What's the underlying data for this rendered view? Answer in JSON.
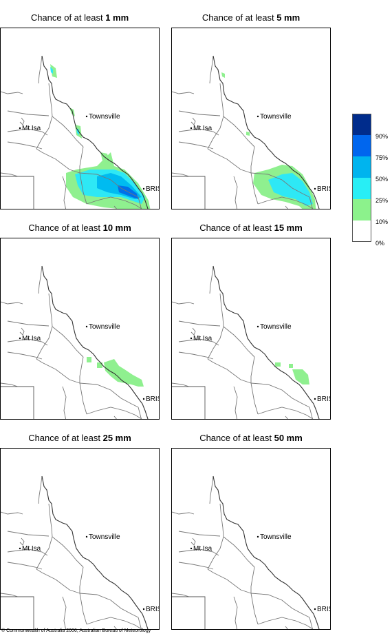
{
  "panels": [
    {
      "prefix": "Chance of at least ",
      "amount": "1 mm",
      "fill": [
        {
          "c": "#8ff08f",
          "p": "95,210 110,205 140,200 160,180 165,200 180,205 200,225 215,250 220,275 210,300 195,290 185,270 170,262 150,260 125,255 105,245 95,230"
        },
        {
          "c": "#2ee8f5",
          "p": "108,212 130,205 150,205 165,205 180,210 195,225 210,245 205,255 190,250 175,245 160,245 140,245 120,242 112,228"
        },
        {
          "c": "#00bbf0",
          "p": "140,215 160,210 175,215 190,228 205,245 195,248 175,242 155,238 140,232"
        },
        {
          "c": "#0070e8",
          "p": "170,228 185,230 198,240 200,248 188,244 172,238"
        },
        {
          "c": "#8ff08f",
          "p": "72,52 80,58 82,72 75,70"
        },
        {
          "c": "#2ee8f5",
          "p": "72,56 76,60 76,66 73,64"
        },
        {
          "c": "#8ff08f",
          "p": "100,115 106,118 108,128 103,124"
        },
        {
          "c": "#8ff08f",
          "p": "108,140 116,142 118,160 110,155"
        },
        {
          "c": "#2ee8f5",
          "p": "110,145 114,147 114,155 111,152"
        },
        {
          "c": "#8ff08f",
          "p": "145,180 155,182 158,195 148,192"
        }
      ]
    },
    {
      "prefix": "Chance of at least ",
      "amount": "5 mm",
      "fill": [
        {
          "c": "#8ff08f",
          "p": "120,210 140,205 160,198 175,200 190,212 200,230 208,248 210,270 200,272 185,258 165,252 145,248 130,242 118,225"
        },
        {
          "c": "#2ee8f5",
          "p": "140,220 160,212 175,210 190,222 200,238 205,255 195,258 180,248 162,244 148,238"
        },
        {
          "c": "#8ff08f",
          "p": "72,64 77,66 77,72 73,70"
        },
        {
          "c": "#8ff08f",
          "p": "108,150 113,151 113,156 108,155"
        }
      ]
    },
    {
      "prefix": "Chance of at least ",
      "amount": "10 mm",
      "fill": [
        {
          "c": "#8ff08f",
          "p": "150,180 165,175 172,185 180,190 192,198 205,205 208,215 200,215 190,212 180,210 170,208 160,200 152,192"
        },
        {
          "c": "#8ff08f",
          "p": "125,172 132,172 132,180 125,180"
        },
        {
          "c": "#8ff08f",
          "p": "140,180 148,180 148,188 140,188"
        }
      ]
    },
    {
      "prefix": "Chance of at least ",
      "amount": "15 mm",
      "fill": [
        {
          "c": "#8ff08f",
          "p": "150,180 158,180 158,186 150,186"
        },
        {
          "c": "#8ff08f",
          "p": "175,190 190,190 198,198 200,212 190,212 180,205"
        },
        {
          "c": "#8ff08f",
          "p": "170,182 176,182 176,188 170,188"
        }
      ]
    },
    {
      "prefix": "Chance of at least ",
      "amount": "25 mm",
      "fill": []
    },
    {
      "prefix": "Chance of at least ",
      "amount": "50 mm",
      "fill": []
    }
  ],
  "places": {
    "townsville": "Townsville",
    "mt_isa": "Mt Isa",
    "bris": "BRIS"
  },
  "legend": {
    "colors": [
      "#002c8c",
      "#0066ee",
      "#00b4ee",
      "#28eef5",
      "#8cf28c",
      "#ffffff"
    ],
    "labels": [
      "90%",
      "75%",
      "50%",
      "25%",
      "10%",
      "0%"
    ]
  },
  "copyright": "© Commonwealth of Australia 2006, Australian Bureau of Meteorology"
}
